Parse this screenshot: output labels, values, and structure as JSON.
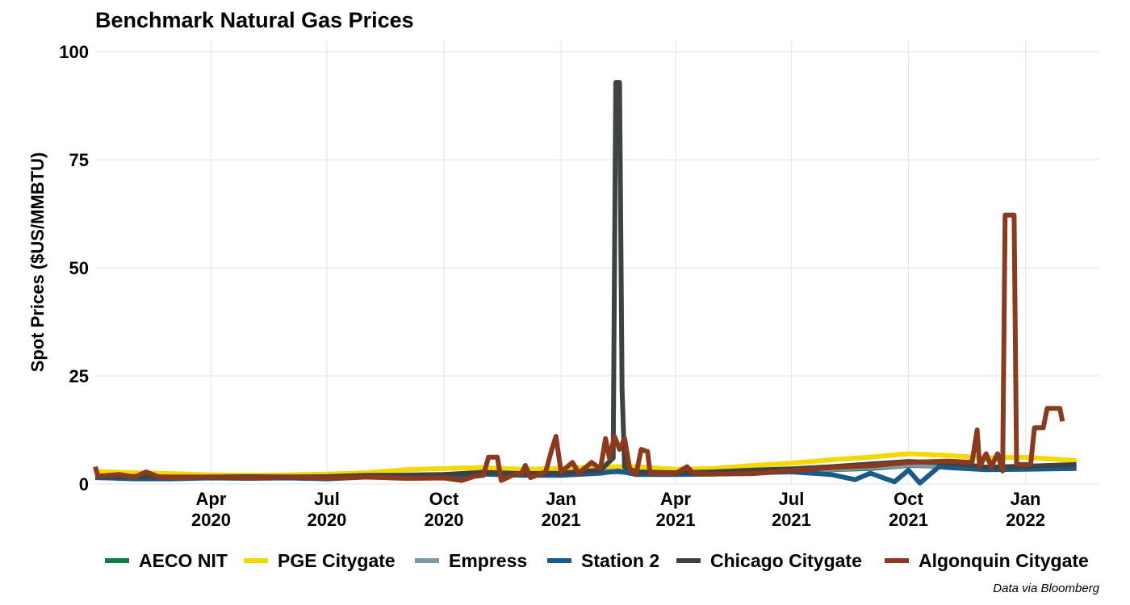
{
  "chart_data": {
    "type": "line",
    "title": "Benchmark Natural Gas Prices",
    "xlabel": "",
    "ylabel": "Spot Prices ($US/MMBTU)",
    "caption": "Data via Bloomberg",
    "xlim": [
      "2020-01-01",
      "2022-02-28"
    ],
    "ylim": [
      0,
      100
    ],
    "y_ticks": [
      0,
      25,
      50,
      75,
      100
    ],
    "x_ticks": [
      {
        "date": "2020-04-01",
        "label": [
          "Apr",
          "2020"
        ]
      },
      {
        "date": "2020-07-01",
        "label": [
          "Jul",
          "2020"
        ]
      },
      {
        "date": "2020-10-01",
        "label": [
          "Oct",
          "2020"
        ]
      },
      {
        "date": "2021-01-01",
        "label": [
          "Jan",
          "2021"
        ]
      },
      {
        "date": "2021-04-01",
        "label": [
          "Apr",
          "2021"
        ]
      },
      {
        "date": "2021-07-01",
        "label": [
          "Jul",
          "2021"
        ]
      },
      {
        "date": "2021-10-01",
        "label": [
          "Oct",
          "2021"
        ]
      },
      {
        "date": "2022-01-01",
        "label": [
          "Jan",
          "2022"
        ]
      }
    ],
    "grid": true,
    "legend_position": "bottom",
    "series": [
      {
        "name": "AECO NIT",
        "color": "#0a7d45",
        "points": [
          [
            "2020-01-01",
            1.8
          ],
          [
            "2020-02-01",
            1.7
          ],
          [
            "2020-03-01",
            1.5
          ],
          [
            "2020-04-01",
            1.5
          ],
          [
            "2020-05-01",
            1.5
          ],
          [
            "2020-06-01",
            1.6
          ],
          [
            "2020-07-01",
            1.5
          ],
          [
            "2020-08-01",
            1.7
          ],
          [
            "2020-09-01",
            2.0
          ],
          [
            "2020-10-01",
            2.1
          ],
          [
            "2020-11-01",
            2.4
          ],
          [
            "2020-12-01",
            2.2
          ],
          [
            "2021-01-01",
            2.3
          ],
          [
            "2021-02-01",
            2.8
          ],
          [
            "2021-02-15",
            3.2
          ],
          [
            "2021-03-01",
            2.5
          ],
          [
            "2021-04-01",
            2.4
          ],
          [
            "2021-05-01",
            2.5
          ],
          [
            "2021-06-01",
            2.9
          ],
          [
            "2021-07-01",
            3.0
          ],
          [
            "2021-08-01",
            3.3
          ],
          [
            "2021-09-01",
            3.6
          ],
          [
            "2021-10-01",
            4.3
          ],
          [
            "2021-11-01",
            4.1
          ],
          [
            "2021-12-01",
            3.6
          ],
          [
            "2022-01-01",
            3.7
          ],
          [
            "2022-02-10",
            4.0
          ]
        ]
      },
      {
        "name": "PGE Citygate",
        "color": "#f5d800",
        "points": [
          [
            "2020-01-01",
            2.9
          ],
          [
            "2020-02-01",
            2.6
          ],
          [
            "2020-03-01",
            2.4
          ],
          [
            "2020-04-01",
            2.1
          ],
          [
            "2020-05-01",
            2.0
          ],
          [
            "2020-06-01",
            2.1
          ],
          [
            "2020-07-01",
            2.3
          ],
          [
            "2020-08-01",
            2.6
          ],
          [
            "2020-09-01",
            3.3
          ],
          [
            "2020-10-01",
            3.6
          ],
          [
            "2020-11-01",
            3.8
          ],
          [
            "2020-12-01",
            3.4
          ],
          [
            "2021-01-01",
            3.6
          ],
          [
            "2021-02-01",
            4.0
          ],
          [
            "2021-03-01",
            4.0
          ],
          [
            "2021-04-01",
            3.4
          ],
          [
            "2021-05-01",
            3.6
          ],
          [
            "2021-06-01",
            4.3
          ],
          [
            "2021-07-01",
            4.8
          ],
          [
            "2021-08-01",
            5.6
          ],
          [
            "2021-09-01",
            6.2
          ],
          [
            "2021-10-01",
            7.0
          ],
          [
            "2021-11-01",
            6.6
          ],
          [
            "2021-12-01",
            6.0
          ],
          [
            "2022-01-01",
            6.2
          ],
          [
            "2022-02-10",
            5.4
          ]
        ]
      },
      {
        "name": "Empress",
        "color": "#7f98a8",
        "points": [
          [
            "2020-01-01",
            1.9
          ],
          [
            "2020-02-01",
            1.8
          ],
          [
            "2020-03-01",
            1.6
          ],
          [
            "2020-04-01",
            1.6
          ],
          [
            "2020-05-01",
            1.6
          ],
          [
            "2020-06-01",
            1.7
          ],
          [
            "2020-07-01",
            1.6
          ],
          [
            "2020-08-01",
            1.8
          ],
          [
            "2020-09-01",
            2.1
          ],
          [
            "2020-10-01",
            2.2
          ],
          [
            "2020-11-01",
            2.5
          ],
          [
            "2020-12-01",
            2.3
          ],
          [
            "2021-01-01",
            2.4
          ],
          [
            "2021-02-01",
            2.9
          ],
          [
            "2021-03-01",
            2.6
          ],
          [
            "2021-04-01",
            2.5
          ],
          [
            "2021-05-01",
            2.6
          ],
          [
            "2021-06-01",
            3.0
          ],
          [
            "2021-07-01",
            3.1
          ],
          [
            "2021-08-01",
            3.4
          ],
          [
            "2021-09-01",
            3.8
          ],
          [
            "2021-10-01",
            4.4
          ],
          [
            "2021-11-01",
            4.2
          ],
          [
            "2021-12-01",
            3.7
          ],
          [
            "2022-01-01",
            3.8
          ],
          [
            "2022-02-10",
            4.1
          ]
        ]
      },
      {
        "name": "Station 2",
        "color": "#1a5a8a",
        "points": [
          [
            "2020-01-01",
            1.5
          ],
          [
            "2020-02-01",
            1.2
          ],
          [
            "2020-03-01",
            1.2
          ],
          [
            "2020-04-01",
            1.4
          ],
          [
            "2020-05-01",
            1.3
          ],
          [
            "2020-06-01",
            1.4
          ],
          [
            "2020-07-01",
            1.2
          ],
          [
            "2020-08-01",
            1.6
          ],
          [
            "2020-09-01",
            1.8
          ],
          [
            "2020-10-01",
            1.5
          ],
          [
            "2020-11-01",
            2.3
          ],
          [
            "2020-12-01",
            2.0
          ],
          [
            "2021-01-01",
            2.0
          ],
          [
            "2021-02-01",
            2.5
          ],
          [
            "2021-02-15",
            3.0
          ],
          [
            "2021-03-01",
            2.2
          ],
          [
            "2021-04-01",
            2.2
          ],
          [
            "2021-05-01",
            2.3
          ],
          [
            "2021-06-01",
            2.6
          ],
          [
            "2021-07-01",
            2.8
          ],
          [
            "2021-08-01",
            2.2
          ],
          [
            "2021-08-20",
            1.0
          ],
          [
            "2021-09-01",
            2.5
          ],
          [
            "2021-09-20",
            0.5
          ],
          [
            "2021-10-01",
            3.2
          ],
          [
            "2021-10-10",
            0.2
          ],
          [
            "2021-10-25",
            4.0
          ],
          [
            "2021-11-01",
            3.8
          ],
          [
            "2021-12-01",
            3.3
          ],
          [
            "2022-01-01",
            3.4
          ],
          [
            "2022-02-10",
            3.6
          ]
        ]
      },
      {
        "name": "Chicago Citygate",
        "color": "#3d4242",
        "points": [
          [
            "2020-01-01",
            1.8
          ],
          [
            "2020-02-01",
            1.7
          ],
          [
            "2020-03-01",
            1.6
          ],
          [
            "2020-04-01",
            1.6
          ],
          [
            "2020-05-01",
            1.7
          ],
          [
            "2020-06-01",
            1.6
          ],
          [
            "2020-07-01",
            1.7
          ],
          [
            "2020-08-01",
            2.0
          ],
          [
            "2020-09-01",
            2.0
          ],
          [
            "2020-10-01",
            2.2
          ],
          [
            "2020-11-01",
            2.7
          ],
          [
            "2020-12-01",
            2.4
          ],
          [
            "2021-01-01",
            2.5
          ],
          [
            "2021-02-01",
            3.2
          ],
          [
            "2021-02-11",
            6.0
          ],
          [
            "2021-02-13",
            92.9
          ],
          [
            "2021-02-16",
            92.9
          ],
          [
            "2021-02-18",
            22.0
          ],
          [
            "2021-02-20",
            4.0
          ],
          [
            "2021-03-01",
            2.8
          ],
          [
            "2021-04-01",
            2.6
          ],
          [
            "2021-05-01",
            2.8
          ],
          [
            "2021-06-01",
            3.2
          ],
          [
            "2021-07-01",
            3.5
          ],
          [
            "2021-08-01",
            4.0
          ],
          [
            "2021-09-01",
            4.6
          ],
          [
            "2021-10-01",
            5.2
          ],
          [
            "2021-11-01",
            4.9
          ],
          [
            "2021-12-01",
            3.9
          ],
          [
            "2022-01-01",
            4.1
          ],
          [
            "2022-02-10",
            4.5
          ]
        ]
      },
      {
        "name": "Algonquin Citygate",
        "color": "#8b3a1e",
        "points": [
          [
            "2020-01-01",
            4.0
          ],
          [
            "2020-01-03",
            1.8
          ],
          [
            "2020-01-20",
            2.2
          ],
          [
            "2020-02-01",
            1.6
          ],
          [
            "2020-02-10",
            2.8
          ],
          [
            "2020-02-20",
            1.6
          ],
          [
            "2020-03-01",
            1.5
          ],
          [
            "2020-04-01",
            1.6
          ],
          [
            "2020-05-01",
            1.4
          ],
          [
            "2020-06-01",
            1.6
          ],
          [
            "2020-07-01",
            1.4
          ],
          [
            "2020-08-01",
            1.6
          ],
          [
            "2020-09-01",
            1.3
          ],
          [
            "2020-10-01",
            1.4
          ],
          [
            "2020-10-15",
            0.8
          ],
          [
            "2020-10-25",
            1.8
          ],
          [
            "2020-11-01",
            2.0
          ],
          [
            "2020-11-05",
            6.2
          ],
          [
            "2020-11-12",
            6.2
          ],
          [
            "2020-11-15",
            0.8
          ],
          [
            "2020-11-25",
            2.2
          ],
          [
            "2020-12-01",
            2.5
          ],
          [
            "2020-12-04",
            4.3
          ],
          [
            "2020-12-08",
            1.5
          ],
          [
            "2020-12-20",
            2.8
          ],
          [
            "2020-12-25",
            8.2
          ],
          [
            "2020-12-28",
            11.0
          ],
          [
            "2021-01-01",
            2.8
          ],
          [
            "2021-01-10",
            5.0
          ],
          [
            "2021-01-15",
            2.5
          ],
          [
            "2021-01-25",
            5.0
          ],
          [
            "2021-02-01",
            3.5
          ],
          [
            "2021-02-05",
            10.5
          ],
          [
            "2021-02-08",
            6.0
          ],
          [
            "2021-02-12",
            11.0
          ],
          [
            "2021-02-16",
            8.0
          ],
          [
            "2021-02-20",
            10.5
          ],
          [
            "2021-02-24",
            3.5
          ],
          [
            "2021-03-01",
            2.2
          ],
          [
            "2021-03-05",
            8.0
          ],
          [
            "2021-03-10",
            7.5
          ],
          [
            "2021-03-12",
            2.5
          ],
          [
            "2021-04-01",
            2.4
          ],
          [
            "2021-04-10",
            4.0
          ],
          [
            "2021-04-15",
            2.5
          ],
          [
            "2021-05-01",
            2.3
          ],
          [
            "2021-06-01",
            2.4
          ],
          [
            "2021-07-01",
            3.1
          ],
          [
            "2021-08-01",
            3.8
          ],
          [
            "2021-09-01",
            4.2
          ],
          [
            "2021-10-01",
            5.0
          ],
          [
            "2021-11-01",
            5.3
          ],
          [
            "2021-11-20",
            5.0
          ],
          [
            "2021-11-24",
            12.5
          ],
          [
            "2021-11-26",
            4.0
          ],
          [
            "2021-12-01",
            7.0
          ],
          [
            "2021-12-05",
            4.0
          ],
          [
            "2021-12-10",
            7.0
          ],
          [
            "2021-12-14",
            3.0
          ],
          [
            "2021-12-16",
            62.2
          ],
          [
            "2021-12-23",
            62.2
          ],
          [
            "2021-12-25",
            4.5
          ],
          [
            "2022-01-05",
            4.5
          ],
          [
            "2022-01-08",
            13.0
          ],
          [
            "2022-01-15",
            13.0
          ],
          [
            "2022-01-18",
            17.5
          ],
          [
            "2022-01-28",
            17.5
          ],
          [
            "2022-01-30",
            14.5
          ]
        ]
      }
    ]
  }
}
